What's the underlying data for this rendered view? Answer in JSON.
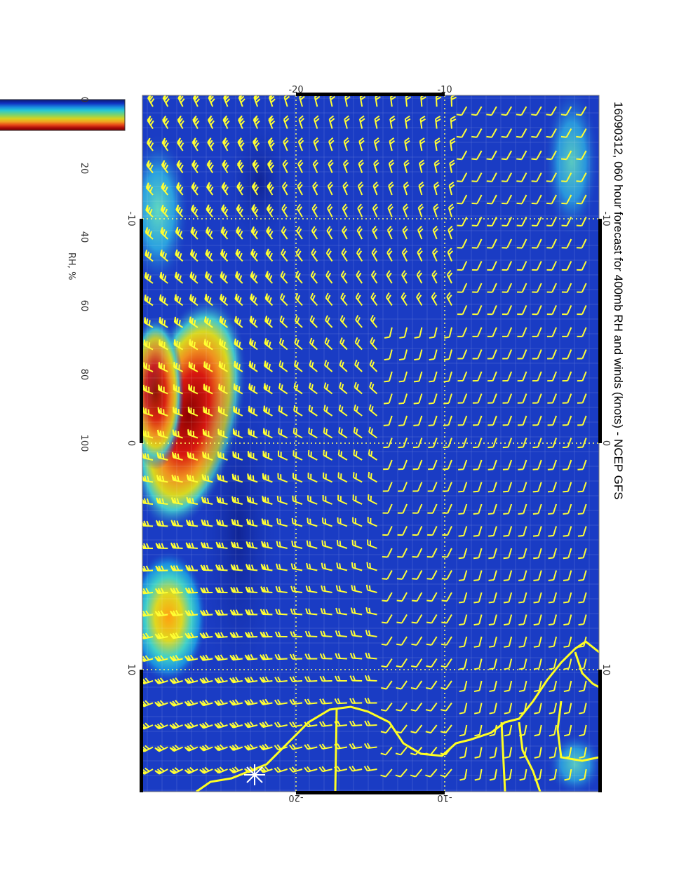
{
  "title": "16090312, 060 hour forecast for 400mb RH and winds (knots) - NCEP GFS",
  "colorbar": {
    "label": "RH, %",
    "ticks": [
      "0",
      "20",
      "40",
      "60",
      "80",
      "100"
    ],
    "range": [
      0,
      100
    ],
    "colors": [
      "#0a1a6e",
      "#1030c0",
      "#1a8fe0",
      "#27c9d4",
      "#7ed36a",
      "#d8d21e",
      "#f0a020",
      "#e84818",
      "#a80808",
      "#700000"
    ]
  },
  "axes": {
    "top_labels": [
      "-20",
      "-10"
    ],
    "bottom_labels": [
      "-20",
      "-10"
    ],
    "left_labels": [
      "-10",
      "0",
      "10"
    ],
    "right_labels": [
      "-10",
      "0",
      "10"
    ]
  },
  "map": {
    "background_color": "#1a3cc4",
    "barb_color": "#ffff33",
    "coast_color": "#ffff22",
    "marker": "asterisk-marker"
  }
}
